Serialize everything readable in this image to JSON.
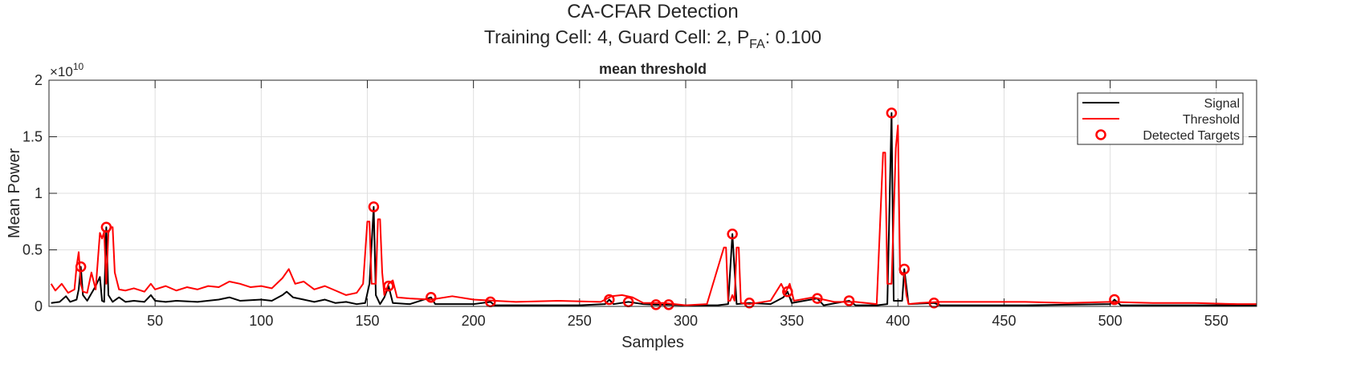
{
  "chart_data": {
    "type": "line",
    "title": "CA-CFAR Detection",
    "subtitle_prefix": "Training Cell: 4, Guard Cell: 2, P",
    "subtitle_sub": "FA",
    "subtitle_suffix": ": 0.100",
    "axes_title": "mean threshold",
    "xlabel": "Samples",
    "ylabel": "Mean Power",
    "y_exponent": {
      "base": "×10",
      "power": "10"
    },
    "xlim": [
      0,
      569
    ],
    "ylim": [
      0,
      2
    ],
    "xticks": [
      50,
      100,
      150,
      200,
      250,
      300,
      350,
      400,
      450,
      500,
      550
    ],
    "yticks": [
      0,
      0.5,
      1,
      1.5,
      2
    ],
    "grid": true,
    "legend": "top-right",
    "series": [
      {
        "name": "Signal",
        "color": "#000000",
        "style": "line",
        "x": [
          1,
          5,
          8,
          10,
          13,
          14,
          15,
          16,
          18,
          22,
          24,
          25,
          26,
          27,
          28,
          30,
          33,
          36,
          40,
          45,
          48,
          50,
          55,
          60,
          70,
          80,
          85,
          90,
          100,
          105,
          110,
          112,
          115,
          120,
          125,
          130,
          135,
          140,
          145,
          149,
          151,
          153,
          154,
          156,
          158,
          160,
          162,
          170,
          180,
          182,
          190,
          200,
          208,
          210,
          230,
          250,
          262,
          264,
          266,
          273,
          280,
          286,
          292,
          300,
          315,
          320,
          322,
          324,
          330,
          340,
          346,
          348,
          350,
          362,
          365,
          377,
          380,
          390,
          395,
          397,
          398,
          402,
          403,
          405,
          417,
          420,
          460,
          500,
          502,
          505,
          540,
          569
        ],
        "values": [
          0.03,
          0.04,
          0.09,
          0.04,
          0.06,
          0.15,
          0.35,
          0.1,
          0.05,
          0.18,
          0.26,
          0.05,
          0.04,
          0.7,
          0.1,
          0.04,
          0.08,
          0.04,
          0.05,
          0.04,
          0.1,
          0.05,
          0.04,
          0.05,
          0.04,
          0.06,
          0.08,
          0.05,
          0.06,
          0.05,
          0.1,
          0.13,
          0.08,
          0.06,
          0.04,
          0.06,
          0.03,
          0.04,
          0.02,
          0.03,
          0.2,
          0.88,
          0.1,
          0.02,
          0.08,
          0.18,
          0.03,
          0.02,
          0.08,
          0.02,
          0.02,
          0.02,
          0.04,
          0.01,
          0.01,
          0.01,
          0.02,
          0.06,
          0.02,
          0.04,
          0.02,
          0.015,
          0.015,
          0.01,
          0.01,
          0.02,
          0.64,
          0.02,
          0.03,
          0.02,
          0.08,
          0.13,
          0.03,
          0.07,
          0.01,
          0.05,
          0.01,
          0.01,
          0.02,
          1.71,
          0.05,
          0.05,
          0.33,
          0.02,
          0.03,
          0.01,
          0.01,
          0.02,
          0.06,
          0.01,
          0.01,
          0.01
        ]
      },
      {
        "name": "Threshold",
        "color": "#ff0000",
        "style": "line",
        "x": [
          1,
          3,
          6,
          9,
          12,
          13,
          14,
          15,
          16,
          18,
          20,
          22,
          24,
          25,
          26,
          27,
          28,
          29,
          30,
          31,
          33,
          36,
          40,
          45,
          48,
          50,
          55,
          60,
          65,
          70,
          75,
          80,
          85,
          90,
          95,
          100,
          105,
          110,
          113,
          116,
          120,
          125,
          130,
          135,
          140,
          145,
          148,
          150,
          151,
          152,
          153,
          154,
          155,
          156,
          157,
          158,
          160,
          162,
          164,
          170,
          180,
          190,
          200,
          210,
          220,
          240,
          260,
          265,
          270,
          275,
          280,
          290,
          300,
          310,
          318,
          319,
          320,
          321,
          322,
          323,
          324,
          325,
          326,
          330,
          340,
          345,
          347,
          349,
          351,
          360,
          370,
          380,
          390,
          393,
          394,
          395,
          397,
          399,
          400,
          401,
          402,
          403,
          404,
          405,
          410,
          420,
          440,
          460,
          480,
          500,
          520,
          540,
          560,
          569
        ],
        "values": [
          0.2,
          0.14,
          0.2,
          0.12,
          0.15,
          0.35,
          0.48,
          0.2,
          0.13,
          0.12,
          0.3,
          0.15,
          0.65,
          0.6,
          0.66,
          0.2,
          0.65,
          0.7,
          0.7,
          0.3,
          0.15,
          0.14,
          0.16,
          0.13,
          0.2,
          0.15,
          0.18,
          0.14,
          0.17,
          0.15,
          0.18,
          0.17,
          0.22,
          0.2,
          0.17,
          0.18,
          0.16,
          0.25,
          0.33,
          0.2,
          0.22,
          0.15,
          0.18,
          0.14,
          0.1,
          0.12,
          0.2,
          0.75,
          0.75,
          0.2,
          0.2,
          0.2,
          0.77,
          0.77,
          0.3,
          0.1,
          0.2,
          0.23,
          0.08,
          0.07,
          0.06,
          0.09,
          0.06,
          0.05,
          0.04,
          0.05,
          0.04,
          0.09,
          0.1,
          0.08,
          0.03,
          0.03,
          0.01,
          0.02,
          0.52,
          0.52,
          0.05,
          0.05,
          0.1,
          0.05,
          0.52,
          0.52,
          0.03,
          0.02,
          0.05,
          0.2,
          0.12,
          0.2,
          0.05,
          0.08,
          0.04,
          0.04,
          0.02,
          1.36,
          1.36,
          0.2,
          0.2,
          1.4,
          1.6,
          0.3,
          0.28,
          0.28,
          0.1,
          0.02,
          0.03,
          0.04,
          0.04,
          0.04,
          0.03,
          0.04,
          0.03,
          0.03,
          0.02,
          0.02
        ]
      },
      {
        "name": "Detected Targets",
        "color": "#ff0000",
        "style": "marker",
        "x": [
          15,
          27,
          153,
          160,
          180,
          208,
          264,
          273,
          286,
          292,
          322,
          330,
          348,
          362,
          377,
          397,
          403,
          417,
          502
        ],
        "values": [
          0.35,
          0.7,
          0.88,
          0.18,
          0.08,
          0.04,
          0.06,
          0.04,
          0.015,
          0.015,
          0.64,
          0.03,
          0.13,
          0.07,
          0.05,
          1.71,
          0.33,
          0.03,
          0.06
        ]
      }
    ]
  }
}
